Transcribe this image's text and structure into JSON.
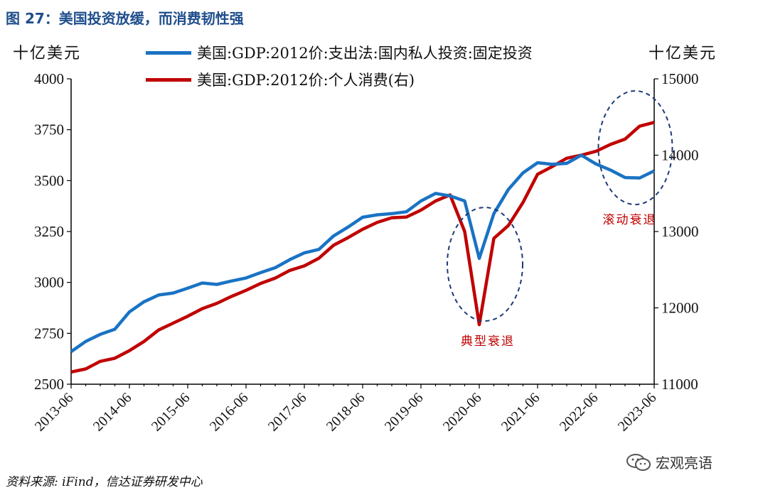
{
  "title": "图 27：美国投资放缓，而消费韧性强",
  "source": "资料来源: iFind，信达证券研发中心",
  "watermark": "宏观亮语",
  "colors": {
    "investment": "#1a73c4",
    "consumption": "#c00000",
    "annotation": "#c00000",
    "ellipse": "#1f3a7a"
  },
  "chart_data": {
    "type": "line",
    "left_unit": "十亿美元",
    "right_unit": "十亿美元",
    "ylim_left": [
      2500,
      4000
    ],
    "ylim_right": [
      11000,
      15000
    ],
    "yticks_left": [
      "2500",
      "2750",
      "3000",
      "3250",
      "3500",
      "3750",
      "4000"
    ],
    "yticks_right": [
      "11000",
      "12000",
      "13000",
      "14000",
      "15000"
    ],
    "xtick_labels": [
      "2013-06",
      "2014-06",
      "2015-06",
      "2016-06",
      "2017-06",
      "2018-06",
      "2019-06",
      "2020-06",
      "2021-06",
      "2022-06",
      "2023-06"
    ],
    "x": [
      "2013-06",
      "2013-09",
      "2013-12",
      "2014-03",
      "2014-06",
      "2014-09",
      "2014-12",
      "2015-03",
      "2015-06",
      "2015-09",
      "2015-12",
      "2016-03",
      "2016-06",
      "2016-09",
      "2016-12",
      "2017-03",
      "2017-06",
      "2017-09",
      "2017-12",
      "2018-03",
      "2018-06",
      "2018-09",
      "2018-12",
      "2019-03",
      "2019-06",
      "2019-09",
      "2019-12",
      "2020-03",
      "2020-06",
      "2020-09",
      "2020-12",
      "2021-03",
      "2021-06",
      "2021-09",
      "2021-12",
      "2022-03",
      "2022-06",
      "2022-09",
      "2022-12",
      "2023-03",
      "2023-06"
    ],
    "series": [
      {
        "name": "美国:GDP:2012价:支出法:国内私人投资:固定投资",
        "axis": "left",
        "values": [
          2660,
          2710,
          2745,
          2770,
          2855,
          2905,
          2938,
          2948,
          2972,
          2997,
          2990,
          3007,
          3022,
          3048,
          3072,
          3112,
          3145,
          3162,
          3228,
          3272,
          3320,
          3332,
          3338,
          3347,
          3400,
          3437,
          3425,
          3400,
          3118,
          3338,
          3457,
          3538,
          3588,
          3580,
          3585,
          3625,
          3582,
          3552,
          3515,
          3513,
          3548
        ]
      },
      {
        "name": "美国:GDP:2012价:个人消费(右)",
        "axis": "right",
        "values": [
          11160,
          11200,
          11300,
          11340,
          11440,
          11560,
          11710,
          11800,
          11890,
          11990,
          12060,
          12150,
          12230,
          12320,
          12390,
          12490,
          12550,
          12650,
          12820,
          12920,
          13030,
          13120,
          13180,
          13190,
          13280,
          13400,
          13480,
          13000,
          11780,
          12910,
          13080,
          13380,
          13750,
          13850,
          13960,
          14000,
          14050,
          14140,
          14210,
          14380,
          14430
        ]
      }
    ],
    "annotations": [
      {
        "text": "典型衰退",
        "near": "2020-06"
      },
      {
        "text": "滚动衰退",
        "near": "2023-03"
      }
    ]
  }
}
